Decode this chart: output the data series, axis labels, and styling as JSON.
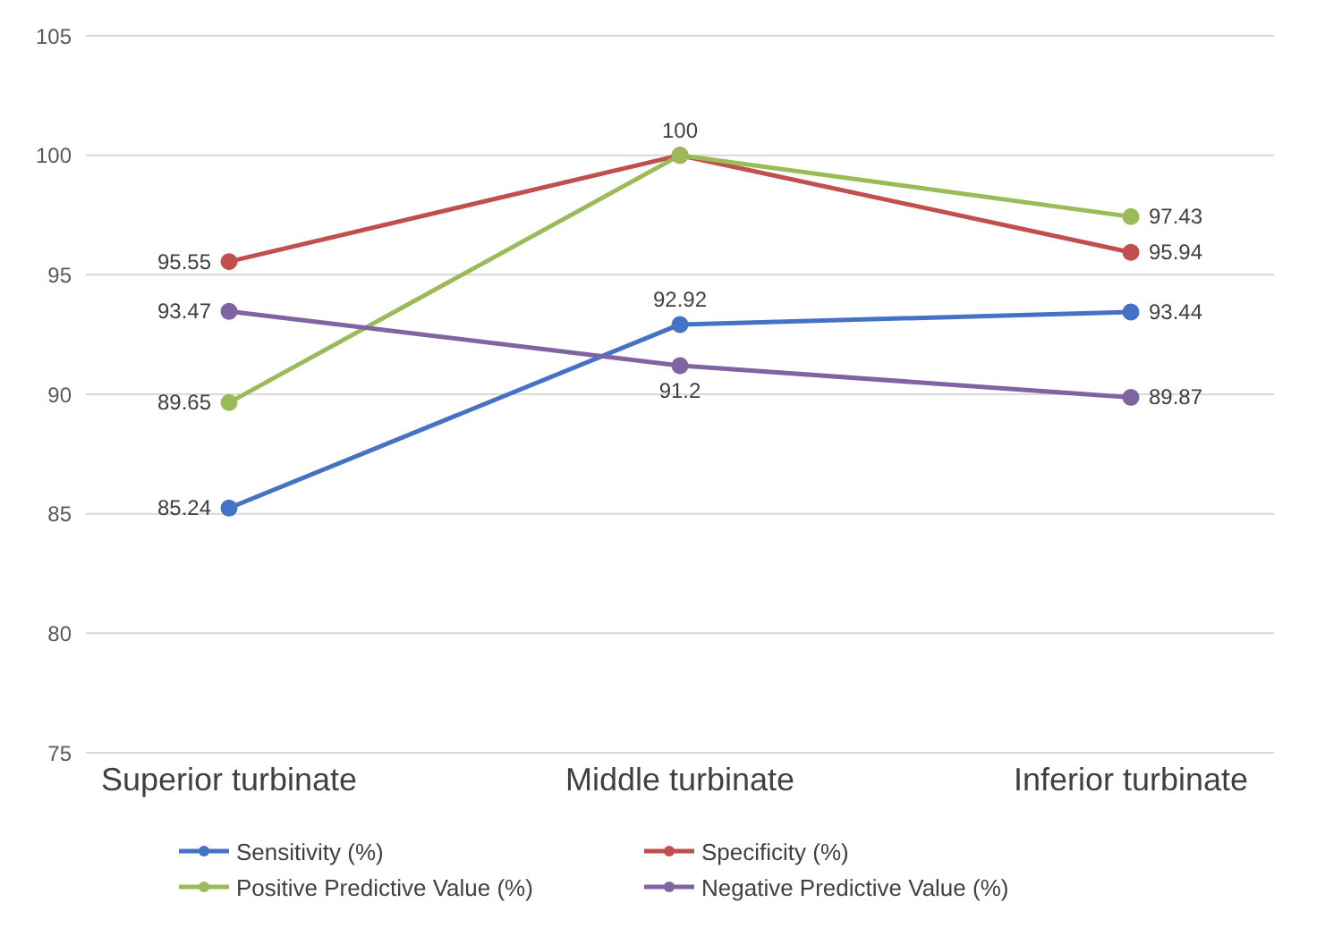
{
  "chart_data": {
    "type": "line",
    "categories": [
      "Superior turbinate",
      "Middle turbinate",
      "Inferior turbinate"
    ],
    "series": [
      {
        "name": "Sensitivity (%)",
        "color": "#4472c4",
        "values": [
          85.24,
          92.92,
          93.44
        ],
        "value_labels": [
          "85.24",
          "92.92",
          "93.44"
        ]
      },
      {
        "name": "Specificity (%)",
        "color": "#c0504d",
        "values": [
          95.55,
          100,
          95.94
        ],
        "value_labels": [
          "95.55",
          "100",
          "95.94"
        ]
      },
      {
        "name": "Positive Predictive Value (%)",
        "color": "#9bbb59",
        "values": [
          89.65,
          100,
          97.43
        ],
        "value_labels": [
          "89.65",
          null,
          "97.43"
        ]
      },
      {
        "name": "Negative Predictive Value (%)",
        "color": "#8064a2",
        "values": [
          93.47,
          91.2,
          89.87
        ],
        "value_labels": [
          "93.47",
          "91.2",
          "89.87"
        ]
      }
    ],
    "ylim": [
      75,
      105
    ],
    "yticks": [
      75,
      80,
      85,
      90,
      95,
      100,
      105
    ],
    "grid": "y",
    "legend": "bottom",
    "marker": "circle",
    "line_style": "solid"
  }
}
